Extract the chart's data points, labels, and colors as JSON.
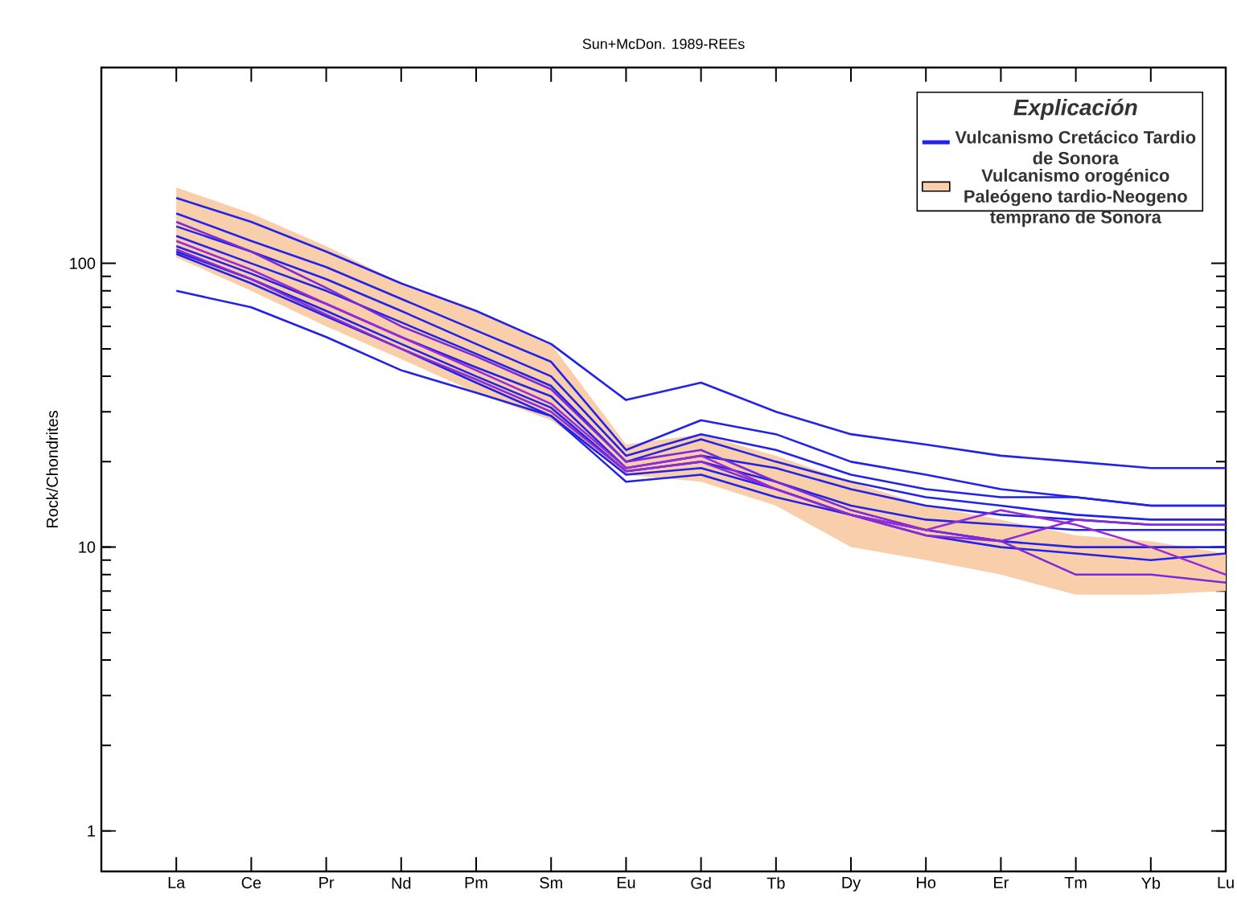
{
  "chart_data": {
    "type": "line",
    "title": "Sun+McDon. 1989-REEs",
    "ylabel": "Rock/Chondrites",
    "legend_title": "Explicación",
    "categories": [
      "La",
      "Ce",
      "Pr",
      "Nd",
      "Pm",
      "Sm",
      "Eu",
      "Gd",
      "Tb",
      "Dy",
      "Ho",
      "Er",
      "Tm",
      "Yb",
      "Lu"
    ],
    "log": "y",
    "ylim": [
      0.72,
      490
    ],
    "yticks": [
      1,
      10,
      100
    ],
    "legend": "top right",
    "marker": "none",
    "line_style": "solid",
    "series": [
      {
        "name": "Vulcanismo Cretácico Tardio de Sonora",
        "color": "#2222e8",
        "values": [
          170,
          140,
          110,
          85,
          68,
          52,
          33,
          38,
          30,
          25,
          23,
          21,
          20,
          19,
          19
        ]
      },
      {
        "color": "#2222e8",
        "values": [
          150,
          120,
          97,
          75,
          58,
          45,
          22,
          28,
          25,
          20,
          18,
          16,
          15,
          14,
          14
        ]
      },
      {
        "color": "#2222e8",
        "values": [
          135,
          110,
          88,
          68,
          52,
          40,
          21,
          25,
          22,
          18,
          16,
          15,
          15,
          14,
          14
        ]
      },
      {
        "color": "#2222e8",
        "values": [
          125,
          100,
          80,
          62,
          48,
          37,
          20,
          24,
          20,
          17,
          15,
          14,
          13,
          12.5,
          12.5
        ]
      },
      {
        "color": "#2222e8",
        "values": [
          115,
          92,
          72,
          55,
          43,
          34,
          19,
          21,
          19,
          16,
          14,
          13,
          12.5,
          12,
          12
        ]
      },
      {
        "color": "#2222e8",
        "values": [
          110,
          88,
          68,
          52,
          40,
          31,
          18.5,
          20,
          17,
          14,
          12.5,
          12,
          11.5,
          11.5,
          11.5
        ]
      },
      {
        "color": "#2222e8",
        "values": [
          108,
          85,
          65,
          50,
          38,
          29,
          18,
          19,
          16,
          13,
          11.5,
          10.5,
          10,
          10,
          10
        ]
      },
      {
        "color": "#2222e8",
        "values": [
          80,
          70,
          55,
          42,
          35,
          29,
          17,
          18,
          15,
          13,
          11,
          10,
          9.5,
          9,
          9.5
        ]
      },
      {
        "color": "#7a2ad8",
        "values": [
          140,
          110,
          82,
          60,
          47,
          36,
          20,
          22,
          17,
          13.5,
          11.5,
          10.5,
          8,
          8,
          7.5
        ]
      },
      {
        "color": "#9a2ad8",
        "values": [
          120,
          95,
          72,
          55,
          42,
          32,
          19,
          21,
          16,
          13,
          11.5,
          13.5,
          12,
          10,
          8
        ]
      },
      {
        "color": "#8a2ad8",
        "values": [
          112,
          88,
          66,
          50,
          39,
          30,
          18.5,
          20,
          16,
          13,
          11,
          10.5,
          12.5,
          12,
          12
        ]
      },
      {
        "type": "area",
        "name": "Vulcanismo orogénico Paleógeno tardio-Neogeno temprano de Sonora",
        "color": "#f8cfaa",
        "values": [
          null,
          null,
          null,
          null,
          null,
          null,
          null,
          null,
          null,
          null,
          null,
          null,
          null,
          null,
          null
        ],
        "lower": [
          105,
          80,
          60,
          46,
          35,
          28,
          18,
          17,
          14,
          10,
          9,
          8,
          6.8,
          6.8,
          7
        ],
        "upper": [
          185,
          150,
          115,
          85,
          68,
          52,
          23,
          25,
          21,
          17,
          14,
          12.5,
          11,
          10.5,
          9.5
        ]
      }
    ]
  }
}
